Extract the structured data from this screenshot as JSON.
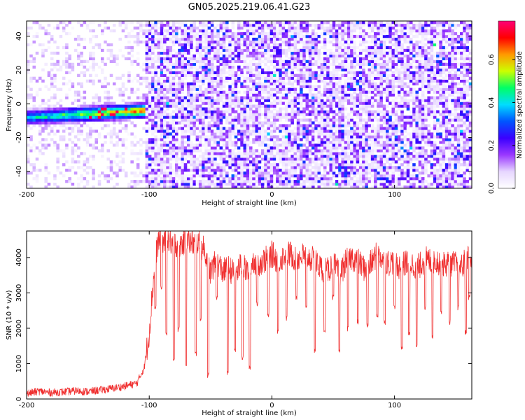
{
  "chart_data": [
    {
      "type": "heatmap",
      "title": "GN05.2025.219.06.41.G23",
      "xlabel": "Height of straight line (km)",
      "ylabel": "Frequency (Hz)",
      "xlim": [
        -200,
        163
      ],
      "ylim": [
        -50,
        49
      ],
      "xticks": [
        -200,
        -100,
        0,
        100
      ],
      "yticks": [
        -40,
        -20,
        0,
        20,
        40
      ],
      "colorbar": {
        "label": "Normalized spectral amplitude",
        "range": [
          0.0,
          0.78
        ],
        "ticks": [
          0.0,
          0.2,
          0.4,
          0.6
        ],
        "colors": [
          "#ffffff",
          "#e6d6ff",
          "#9a38ff",
          "#3a00ff",
          "#0055ff",
          "#00ddff",
          "#00ff66",
          "#ccff00",
          "#ff9900",
          "#ff0000",
          "#ff0077"
        ]
      },
      "features": {
        "signal_band": {
          "x_range": [
            -200,
            -103
          ],
          "freq_center_start": -8,
          "freq_center_end": -4,
          "peak_amplitude": 0.75
        },
        "noise_onset_x": -103,
        "noise_amplitude": 0.2
      }
    },
    {
      "type": "line",
      "xlabel": "Height of straight line (km)",
      "ylabel": "SNR (10 * v/v)",
      "xlim": [
        -200,
        163
      ],
      "ylim": [
        0,
        4750
      ],
      "xticks": [
        -200,
        -100,
        0,
        100
      ],
      "yticks": [
        0,
        1000,
        2000,
        3000,
        4000
      ],
      "series": [
        {
          "color": "#f03030",
          "x": [
            -200,
            -190,
            -180,
            -170,
            -160,
            -150,
            -140,
            -130,
            -120,
            -110,
            -104,
            -100,
            -97,
            -94,
            -92,
            -90,
            -85,
            -80,
            -75,
            -70,
            -65,
            -60,
            -55,
            -50,
            -45,
            -40,
            -35,
            -30,
            -25,
            -20,
            -15,
            -10,
            -5,
            0,
            5,
            10,
            15,
            20,
            25,
            30,
            35,
            40,
            45,
            50,
            55,
            60,
            65,
            70,
            75,
            80,
            85,
            90,
            95,
            100,
            105,
            110,
            115,
            120,
            125,
            130,
            135,
            140,
            145,
            150,
            155,
            160,
            163
          ],
          "y": [
            150,
            220,
            180,
            200,
            230,
            210,
            250,
            300,
            360,
            450,
            900,
            1900,
            3200,
            4200,
            4550,
            4500,
            4450,
            4400,
            4350,
            4500,
            4400,
            4450,
            4200,
            3600,
            3900,
            3600,
            3700,
            3500,
            3800,
            3600,
            3900,
            3850,
            3950,
            4100,
            3900,
            4050,
            4100,
            3950,
            4050,
            4000,
            3900,
            3700,
            3600,
            3850,
            3500,
            3850,
            4000,
            3900,
            3700,
            3800,
            4050,
            4000,
            3850,
            3900,
            3700,
            3900,
            3800,
            3750,
            3950,
            3900,
            3900,
            3800,
            3850,
            3800,
            3750,
            4050,
            3900
          ],
          "dips": [
            {
              "x": -95,
              "y": 2500
            },
            {
              "x": -90,
              "y": 3100
            },
            {
              "x": -86,
              "y": 1800
            },
            {
              "x": -80,
              "y": 1000
            },
            {
              "x": -76,
              "y": 1900
            },
            {
              "x": -70,
              "y": 900
            },
            {
              "x": -62,
              "y": 1200
            },
            {
              "x": -58,
              "y": 2200
            },
            {
              "x": -52,
              "y": 600
            },
            {
              "x": -45,
              "y": 2800
            },
            {
              "x": -36,
              "y": 650
            },
            {
              "x": -30,
              "y": 1300
            },
            {
              "x": -24,
              "y": 1100
            },
            {
              "x": -18,
              "y": 800
            },
            {
              "x": -12,
              "y": 2600
            },
            {
              "x": -3,
              "y": 2300
            },
            {
              "x": 5,
              "y": 1850
            },
            {
              "x": 12,
              "y": 2200
            },
            {
              "x": 20,
              "y": 2800
            },
            {
              "x": 28,
              "y": 2500
            },
            {
              "x": 35,
              "y": 1300
            },
            {
              "x": 43,
              "y": 1800
            },
            {
              "x": 50,
              "y": 2800
            },
            {
              "x": 55,
              "y": 1300
            },
            {
              "x": 62,
              "y": 1900
            },
            {
              "x": 70,
              "y": 2100
            },
            {
              "x": 78,
              "y": 2000
            },
            {
              "x": 86,
              "y": 2300
            },
            {
              "x": 92,
              "y": 2100
            },
            {
              "x": 100,
              "y": 2500
            },
            {
              "x": 106,
              "y": 1400
            },
            {
              "x": 112,
              "y": 1750
            },
            {
              "x": 118,
              "y": 1400
            },
            {
              "x": 125,
              "y": 2500
            },
            {
              "x": 131,
              "y": 1700
            },
            {
              "x": 138,
              "y": 2400
            },
            {
              "x": 145,
              "y": 2100
            },
            {
              "x": 152,
              "y": 2500
            },
            {
              "x": 158,
              "y": 1800
            },
            {
              "x": 161,
              "y": 2800
            }
          ]
        }
      ]
    }
  ]
}
